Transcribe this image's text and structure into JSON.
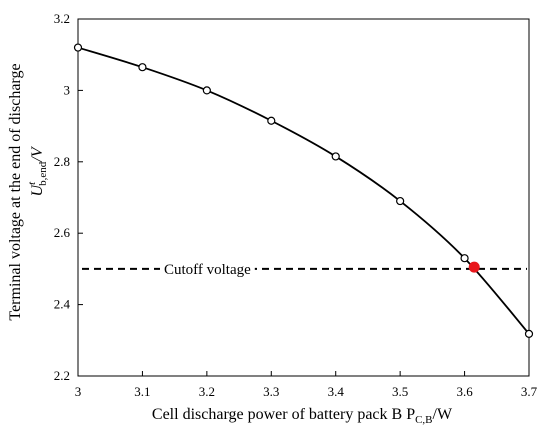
{
  "chart_data": {
    "type": "line",
    "x": [
      3.0,
      3.1,
      3.2,
      3.3,
      3.4,
      3.5,
      3.6,
      3.7
    ],
    "series": [
      {
        "values": [
          3.12,
          3.065,
          3.0,
          2.915,
          2.815,
          2.69,
          2.53,
          2.318
        ]
      }
    ],
    "highlight_point": {
      "x": 3.615,
      "y": 2.505,
      "color": "#e8161b"
    },
    "reference_line": {
      "y": 2.5,
      "label": "Cutoff voltage",
      "style": "dashed"
    },
    "xlim": [
      3.0,
      3.7
    ],
    "ylim": [
      2.2,
      3.2
    ],
    "x_ticks": [
      3.0,
      3.1,
      3.2,
      3.3,
      3.4,
      3.5,
      3.6,
      3.7
    ],
    "x_tick_labels": [
      "3",
      "3.1",
      "3.2",
      "3.3",
      "3.4",
      "3.5",
      "3.6",
      "3.7"
    ],
    "y_ticks": [
      2.2,
      2.4,
      2.6,
      2.8,
      3.0,
      3.2
    ],
    "y_tick_labels": [
      "2.2",
      "2.4",
      "2.6",
      "2.8",
      "3",
      "3.2"
    ],
    "xlabel": "Cell discharge power of  battery pack B P",
    "xlabel_subscript": "C,B",
    "xlabel_suffix": "/W",
    "ylabel_line1": "Terminal voltage at the end of discharge",
    "ylabel_symbol": "U",
    "ylabel_superscript": "t",
    "ylabel_subscript": "b,end",
    "ylabel_suffix": "/V",
    "grid": false,
    "marker": "open-circle",
    "colors": {
      "line": "#000000",
      "highlight": "#e8161b"
    }
  }
}
